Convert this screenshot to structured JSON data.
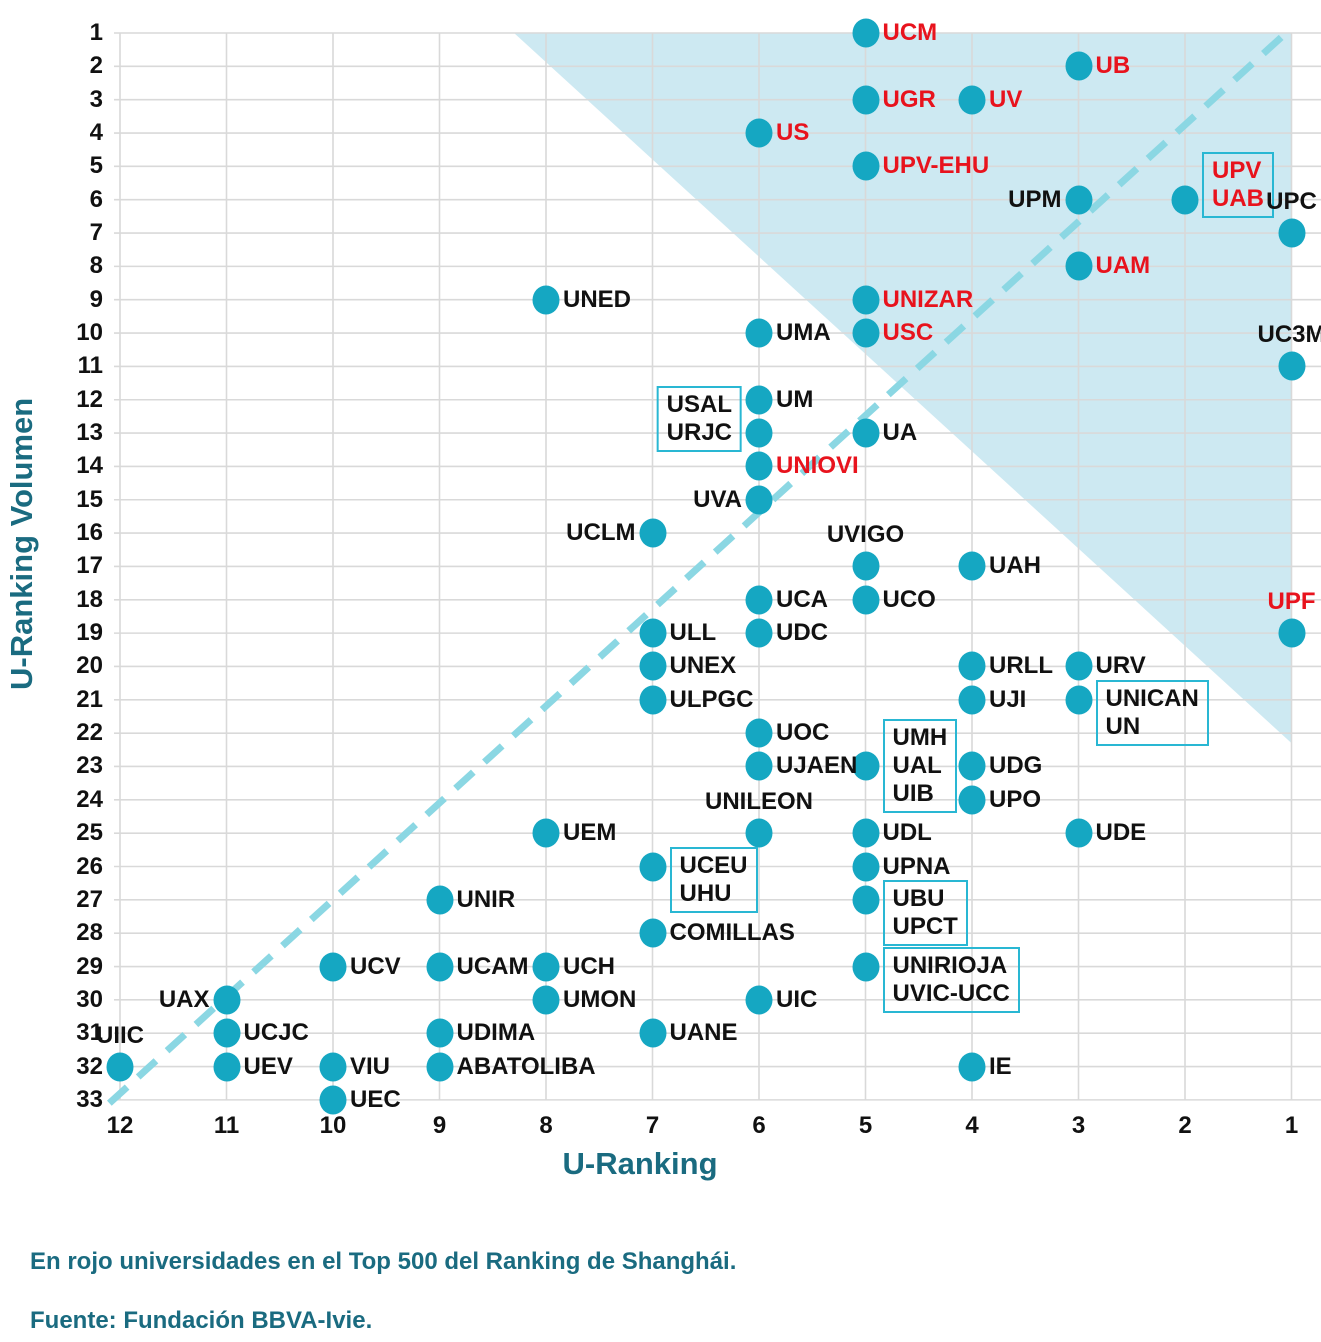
{
  "chart_data": {
    "type": "scatter",
    "title": "",
    "xlabel": "U-Ranking",
    "ylabel": "U-Ranking Volumen",
    "x_ticks": [
      12,
      11,
      10,
      9,
      8,
      7,
      6,
      5,
      4,
      3,
      2,
      1
    ],
    "y_ticks": [
      1,
      2,
      3,
      4,
      5,
      6,
      7,
      8,
      9,
      10,
      11,
      12,
      13,
      14,
      15,
      16,
      17,
      18,
      19,
      20,
      21,
      22,
      23,
      24,
      25,
      26,
      27,
      28,
      29,
      30,
      31,
      32,
      33
    ],
    "x_axis_reversed": true,
    "y_axis_inverted": true,
    "grid": true,
    "diagonal_line": {
      "style": "dashed",
      "from": {
        "x": 12.1,
        "y": 33.1
      },
      "to": {
        "x": 1.0,
        "y": 0.85
      }
    },
    "shaded_region": {
      "description": "light blue triangle, upper-right of plot",
      "vertices": [
        {
          "x": 8.3,
          "y": 1
        },
        {
          "x": 1,
          "y": 1
        },
        {
          "x": 1,
          "y": 22.3
        }
      ]
    },
    "points": [
      {
        "codes": [
          "UCM"
        ],
        "x": 5,
        "y": 1,
        "top500": true,
        "label_pos": "right",
        "boxed": false
      },
      {
        "codes": [
          "UB"
        ],
        "x": 3,
        "y": 2,
        "top500": true,
        "label_pos": "right",
        "boxed": false
      },
      {
        "codes": [
          "UGR"
        ],
        "x": 5,
        "y": 3,
        "top500": true,
        "label_pos": "right",
        "boxed": false
      },
      {
        "codes": [
          "UV"
        ],
        "x": 4,
        "y": 3,
        "top500": true,
        "label_pos": "right",
        "boxed": false
      },
      {
        "codes": [
          "US"
        ],
        "x": 6,
        "y": 4,
        "top500": true,
        "label_pos": "right",
        "boxed": false
      },
      {
        "codes": [
          "UPV-EHU"
        ],
        "x": 5,
        "y": 5,
        "top500": true,
        "label_pos": "right",
        "boxed": false
      },
      {
        "codes": [
          "UPM"
        ],
        "x": 3,
        "y": 6,
        "top500": false,
        "label_pos": "left",
        "boxed": false
      },
      {
        "codes": [
          "UPV",
          "UAB"
        ],
        "x": 2,
        "y": 6,
        "top500": true,
        "label_pos": "right",
        "boxed": true,
        "align_line": 1
      },
      {
        "codes": [
          "UPC"
        ],
        "x": 1,
        "y": 7,
        "top500": false,
        "label_pos": "above",
        "boxed": false
      },
      {
        "codes": [
          "UAM"
        ],
        "x": 3,
        "y": 8,
        "top500": true,
        "label_pos": "right",
        "boxed": false
      },
      {
        "codes": [
          "UNED"
        ],
        "x": 8,
        "y": 9,
        "top500": false,
        "label_pos": "right",
        "boxed": false
      },
      {
        "codes": [
          "UNIZAR"
        ],
        "x": 5,
        "y": 9,
        "top500": true,
        "label_pos": "right",
        "boxed": false
      },
      {
        "codes": [
          "UMA"
        ],
        "x": 6,
        "y": 10,
        "top500": false,
        "label_pos": "right",
        "boxed": false
      },
      {
        "codes": [
          "USC"
        ],
        "x": 5,
        "y": 10,
        "top500": true,
        "label_pos": "right",
        "boxed": false
      },
      {
        "codes": [
          "UC3M"
        ],
        "x": 1,
        "y": 11,
        "top500": false,
        "label_pos": "above",
        "boxed": false
      },
      {
        "codes": [
          "UM"
        ],
        "x": 6,
        "y": 12,
        "top500": false,
        "label_pos": "right",
        "boxed": false
      },
      {
        "codes": [
          "USAL",
          "URJC"
        ],
        "x": 6,
        "y": 13,
        "top500": false,
        "label_pos": "left",
        "boxed": true,
        "align_line": 1
      },
      {
        "codes": [
          "UA"
        ],
        "x": 5,
        "y": 13,
        "top500": false,
        "label_pos": "right",
        "boxed": false
      },
      {
        "codes": [
          "UNIOVI"
        ],
        "x": 6,
        "y": 14,
        "top500": true,
        "label_pos": "right",
        "boxed": false
      },
      {
        "codes": [
          "UVA"
        ],
        "x": 6,
        "y": 15,
        "top500": false,
        "label_pos": "left",
        "boxed": false
      },
      {
        "codes": [
          "UCLM"
        ],
        "x": 7,
        "y": 16,
        "top500": false,
        "label_pos": "left",
        "boxed": false
      },
      {
        "codes": [
          "UVIGO"
        ],
        "x": 5,
        "y": 17,
        "top500": false,
        "label_pos": "above",
        "boxed": false
      },
      {
        "codes": [
          "UAH"
        ],
        "x": 4,
        "y": 17,
        "top500": false,
        "label_pos": "right",
        "boxed": false
      },
      {
        "codes": [
          "UCA"
        ],
        "x": 6,
        "y": 18,
        "top500": false,
        "label_pos": "right",
        "boxed": false
      },
      {
        "codes": [
          "UCO"
        ],
        "x": 5,
        "y": 18,
        "top500": false,
        "label_pos": "right",
        "boxed": false
      },
      {
        "codes": [
          "ULL"
        ],
        "x": 7,
        "y": 19,
        "top500": false,
        "label_pos": "right",
        "boxed": false
      },
      {
        "codes": [
          "UDC"
        ],
        "x": 6,
        "y": 19,
        "top500": false,
        "label_pos": "right",
        "boxed": false
      },
      {
        "codes": [
          "UPF"
        ],
        "x": 1,
        "y": 19,
        "top500": true,
        "label_pos": "above",
        "boxed": false
      },
      {
        "codes": [
          "UNEX"
        ],
        "x": 7,
        "y": 20,
        "top500": false,
        "label_pos": "right",
        "boxed": false
      },
      {
        "codes": [
          "URLL"
        ],
        "x": 4,
        "y": 20,
        "top500": false,
        "label_pos": "right",
        "boxed": false
      },
      {
        "codes": [
          "URV"
        ],
        "x": 3,
        "y": 20,
        "top500": false,
        "label_pos": "right",
        "boxed": false
      },
      {
        "codes": [
          "ULPGC"
        ],
        "x": 7,
        "y": 21,
        "top500": false,
        "label_pos": "right",
        "boxed": false
      },
      {
        "codes": [
          "UJI"
        ],
        "x": 4,
        "y": 21,
        "top500": false,
        "label_pos": "right",
        "boxed": false
      },
      {
        "codes": [
          "UNICAN",
          "UN"
        ],
        "x": 3,
        "y": 21,
        "top500": false,
        "label_pos": "right",
        "boxed": true,
        "align_line": 0
      },
      {
        "codes": [
          "UOC"
        ],
        "x": 6,
        "y": 22,
        "top500": false,
        "label_pos": "right",
        "boxed": false
      },
      {
        "codes": [
          "UJAEN"
        ],
        "x": 6,
        "y": 23,
        "top500": false,
        "label_pos": "right",
        "boxed": false
      },
      {
        "codes": [
          "UMH",
          "UAL",
          "UIB"
        ],
        "x": 5,
        "y": 23,
        "top500": false,
        "label_pos": "right",
        "boxed": true,
        "align_line": 1
      },
      {
        "codes": [
          "UDG"
        ],
        "x": 4,
        "y": 23,
        "top500": false,
        "label_pos": "right",
        "boxed": false
      },
      {
        "codes": [
          "UPO"
        ],
        "x": 4,
        "y": 24,
        "top500": false,
        "label_pos": "right",
        "boxed": false
      },
      {
        "codes": [
          "UEM"
        ],
        "x": 8,
        "y": 25,
        "top500": false,
        "label_pos": "right",
        "boxed": false
      },
      {
        "codes": [
          "UNILEON"
        ],
        "x": 6,
        "y": 25,
        "top500": false,
        "label_pos": "above",
        "boxed": false
      },
      {
        "codes": [
          "UDL"
        ],
        "x": 5,
        "y": 25,
        "top500": false,
        "label_pos": "right",
        "boxed": false
      },
      {
        "codes": [
          "UDE"
        ],
        "x": 3,
        "y": 25,
        "top500": false,
        "label_pos": "right",
        "boxed": false
      },
      {
        "codes": [
          "UCEU",
          "UHU"
        ],
        "x": 7,
        "y": 26,
        "top500": false,
        "label_pos": "right",
        "boxed": true,
        "align_line": 0
      },
      {
        "codes": [
          "UPNA"
        ],
        "x": 5,
        "y": 26,
        "top500": false,
        "label_pos": "right",
        "boxed": false
      },
      {
        "codes": [
          "UNIR"
        ],
        "x": 9,
        "y": 27,
        "top500": false,
        "label_pos": "right",
        "boxed": false
      },
      {
        "codes": [
          "UBU",
          "UPCT"
        ],
        "x": 5,
        "y": 27,
        "top500": false,
        "label_pos": "right",
        "boxed": true,
        "align_line": 0
      },
      {
        "codes": [
          "COMILLAS"
        ],
        "x": 7,
        "y": 28,
        "top500": false,
        "label_pos": "right",
        "boxed": false
      },
      {
        "codes": [
          "UCV"
        ],
        "x": 10,
        "y": 29,
        "top500": false,
        "label_pos": "right",
        "boxed": false
      },
      {
        "codes": [
          "UCAM"
        ],
        "x": 9,
        "y": 29,
        "top500": false,
        "label_pos": "right",
        "boxed": false
      },
      {
        "codes": [
          "UCH"
        ],
        "x": 8,
        "y": 29,
        "top500": false,
        "label_pos": "right",
        "boxed": false
      },
      {
        "codes": [
          "UNIRIOJA",
          "UVIC-UCC"
        ],
        "x": 5,
        "y": 29,
        "top500": false,
        "label_pos": "right",
        "boxed": true,
        "align_line": 0
      },
      {
        "codes": [
          "UAX"
        ],
        "x": 11,
        "y": 30,
        "top500": false,
        "label_pos": "left",
        "boxed": false
      },
      {
        "codes": [
          "UMON"
        ],
        "x": 8,
        "y": 30,
        "top500": false,
        "label_pos": "right",
        "boxed": false
      },
      {
        "codes": [
          "UIC"
        ],
        "x": 6,
        "y": 30,
        "top500": false,
        "label_pos": "right",
        "boxed": false
      },
      {
        "codes": [
          "UCJC"
        ],
        "x": 11,
        "y": 31,
        "top500": false,
        "label_pos": "right",
        "boxed": false
      },
      {
        "codes": [
          "UDIMA"
        ],
        "x": 9,
        "y": 31,
        "top500": false,
        "label_pos": "right",
        "boxed": false
      },
      {
        "codes": [
          "UANE"
        ],
        "x": 7,
        "y": 31,
        "top500": false,
        "label_pos": "right",
        "boxed": false
      },
      {
        "codes": [
          "UIIC"
        ],
        "x": 12,
        "y": 32,
        "top500": false,
        "label_pos": "above",
        "boxed": false
      },
      {
        "codes": [
          "UEV"
        ],
        "x": 11,
        "y": 32,
        "top500": false,
        "label_pos": "right",
        "boxed": false
      },
      {
        "codes": [
          "VIU"
        ],
        "x": 10,
        "y": 32,
        "top500": false,
        "label_pos": "right",
        "boxed": false
      },
      {
        "codes": [
          "ABATOLIBA"
        ],
        "x": 9,
        "y": 32,
        "top500": false,
        "label_pos": "right",
        "boxed": false
      },
      {
        "codes": [
          "IE"
        ],
        "x": 4,
        "y": 32,
        "top500": false,
        "label_pos": "right",
        "boxed": false
      },
      {
        "codes": [
          "UEC"
        ],
        "x": 10,
        "y": 33,
        "top500": false,
        "label_pos": "right",
        "boxed": false
      }
    ]
  },
  "notes": {
    "legend_note": "En rojo universidades en el Top 500 del Ranking de Shanghái.",
    "source": "Fuente: Fundación BBVA-Ivie."
  },
  "colors": {
    "dot": "#15a7c2",
    "shaded_region": "#cde9f2",
    "dashed_line": "#8bd7e3",
    "red_label": "#e8131d",
    "black_label": "#111111",
    "box_border": "#29b7d3",
    "gridline": "#d9d9d9",
    "axis_title": "#1a6b80",
    "note_text": "#1a6b80"
  }
}
